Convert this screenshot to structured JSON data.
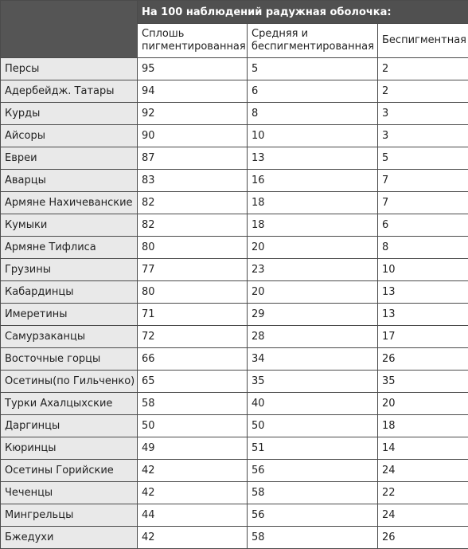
{
  "table": {
    "group_header": "На 100 наблюдений радужная оболочка:",
    "columns": [
      "Сплошь пигментированная",
      "Средняя и беспигментированная",
      "Беспигментная"
    ],
    "rows": [
      {
        "name": "Персы",
        "values": [
          "95",
          "5",
          "2"
        ]
      },
      {
        "name": "Адербейдж. Татары",
        "values": [
          "94",
          "6",
          "2"
        ]
      },
      {
        "name": "Курды",
        "values": [
          "92",
          "8",
          "3"
        ]
      },
      {
        "name": "Айсоры",
        "values": [
          "90",
          "10",
          "3"
        ]
      },
      {
        "name": "Евреи",
        "values": [
          "87",
          "13",
          "5"
        ]
      },
      {
        "name": "Аварцы",
        "values": [
          "83",
          "16",
          "7"
        ]
      },
      {
        "name": "Армяне Нахичеванские",
        "values": [
          "82",
          "18",
          "7"
        ]
      },
      {
        "name": "Кумыки",
        "values": [
          "82",
          "18",
          "6"
        ]
      },
      {
        "name": "Армяне Тифлиса",
        "values": [
          "80",
          "20",
          "8"
        ]
      },
      {
        "name": "Грузины",
        "values": [
          "77",
          "23",
          "10"
        ]
      },
      {
        "name": "Кабардинцы",
        "values": [
          "80",
          "20",
          "13"
        ]
      },
      {
        "name": "Имеретины",
        "values": [
          "71",
          "29",
          "13"
        ]
      },
      {
        "name": "Самурзаканцы",
        "values": [
          "72",
          "28",
          "17"
        ]
      },
      {
        "name": "Восточные горцы",
        "values": [
          "66",
          "34",
          "26"
        ]
      },
      {
        "name": "Осетины(по Гильченко)",
        "values": [
          "65",
          "35",
          "35"
        ]
      },
      {
        "name": "Турки Ахалцыхские",
        "values": [
          "58",
          "40",
          "20"
        ]
      },
      {
        "name": "Даргинцы",
        "values": [
          "50",
          "50",
          "18"
        ]
      },
      {
        "name": "Кюринцы",
        "values": [
          "49",
          "51",
          "14"
        ]
      },
      {
        "name": "Осетины Горийские",
        "values": [
          "42",
          "56",
          "24"
        ]
      },
      {
        "name": "Чеченцы",
        "values": [
          "42",
          "58",
          "22"
        ]
      },
      {
        "name": "Мингрельцы",
        "values": [
          "44",
          "56",
          "24"
        ]
      },
      {
        "name": "Бжедухи",
        "values": [
          "42",
          "58",
          "26"
        ]
      }
    ]
  }
}
